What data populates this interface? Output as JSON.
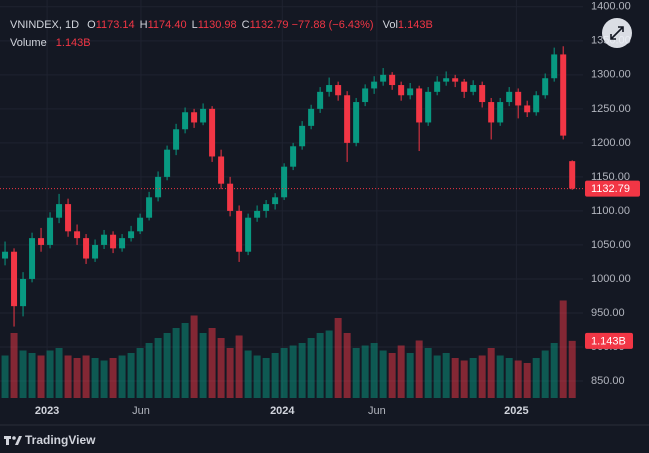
{
  "chart_data": {
    "type": "candlestick",
    "legend": {
      "symbol": "VNINDEX, 1D",
      "fields": [
        {
          "label": "O",
          "value": "1173.14"
        },
        {
          "label": "H",
          "value": "1174.40"
        },
        {
          "label": "L",
          "value": "1130.98"
        },
        {
          "label": "C",
          "value": "1132.79"
        }
      ],
      "change": "−77.88 (−6.43%)",
      "vol_label": "Vol",
      "vol_value": "1.143B",
      "volume_label": "Volume",
      "volume_value": "1.143B"
    },
    "ohlc": [
      [
        1030,
        1055,
        1020,
        1040
      ],
      [
        1040,
        1045,
        930,
        960
      ],
      [
        960,
        1010,
        945,
        1000
      ],
      [
        1000,
        1068,
        995,
        1060
      ],
      [
        1060,
        1075,
        1040,
        1050
      ],
      [
        1050,
        1098,
        1045,
        1090
      ],
      [
        1090,
        1125,
        1082,
        1110
      ],
      [
        1110,
        1118,
        1062,
        1070
      ],
      [
        1070,
        1080,
        1050,
        1060
      ],
      [
        1060,
        1066,
        1022,
        1030
      ],
      [
        1030,
        1058,
        1025,
        1050
      ],
      [
        1050,
        1072,
        1044,
        1065
      ],
      [
        1065,
        1070,
        1038,
        1045
      ],
      [
        1045,
        1066,
        1040,
        1060
      ],
      [
        1060,
        1078,
        1055,
        1070
      ],
      [
        1070,
        1096,
        1066,
        1090
      ],
      [
        1090,
        1128,
        1086,
        1120
      ],
      [
        1120,
        1158,
        1114,
        1150
      ],
      [
        1150,
        1196,
        1145,
        1190
      ],
      [
        1190,
        1228,
        1182,
        1220
      ],
      [
        1220,
        1252,
        1214,
        1245
      ],
      [
        1245,
        1250,
        1222,
        1230
      ],
      [
        1230,
        1258,
        1226,
        1250
      ],
      [
        1250,
        1254,
        1172,
        1180
      ],
      [
        1180,
        1190,
        1132,
        1140
      ],
      [
        1140,
        1150,
        1092,
        1100
      ],
      [
        1100,
        1108,
        1025,
        1040
      ],
      [
        1040,
        1096,
        1035,
        1090
      ],
      [
        1090,
        1108,
        1084,
        1100
      ],
      [
        1100,
        1116,
        1090,
        1110
      ],
      [
        1110,
        1126,
        1102,
        1120
      ],
      [
        1120,
        1170,
        1116,
        1165
      ],
      [
        1165,
        1200,
        1160,
        1195
      ],
      [
        1195,
        1232,
        1190,
        1225
      ],
      [
        1225,
        1256,
        1220,
        1250
      ],
      [
        1250,
        1282,
        1244,
        1275
      ],
      [
        1275,
        1296,
        1268,
        1285
      ],
      [
        1285,
        1290,
        1262,
        1270
      ],
      [
        1270,
        1276,
        1172,
        1200
      ],
      [
        1200,
        1266,
        1195,
        1260
      ],
      [
        1260,
        1286,
        1254,
        1280
      ],
      [
        1280,
        1298,
        1272,
        1290
      ],
      [
        1290,
        1310,
        1284,
        1300
      ],
      [
        1300,
        1304,
        1278,
        1285
      ],
      [
        1285,
        1290,
        1262,
        1270
      ],
      [
        1270,
        1288,
        1264,
        1280
      ],
      [
        1280,
        1284,
        1188,
        1230
      ],
      [
        1230,
        1282,
        1225,
        1275
      ],
      [
        1275,
        1298,
        1270,
        1290
      ],
      [
        1290,
        1305,
        1284,
        1295
      ],
      [
        1295,
        1300,
        1282,
        1290
      ],
      [
        1290,
        1294,
        1266,
        1275
      ],
      [
        1275,
        1292,
        1270,
        1285
      ],
      [
        1285,
        1290,
        1252,
        1260
      ],
      [
        1260,
        1266,
        1205,
        1230
      ],
      [
        1230,
        1266,
        1225,
        1260
      ],
      [
        1260,
        1282,
        1254,
        1275
      ],
      [
        1275,
        1280,
        1236,
        1255
      ],
      [
        1255,
        1262,
        1238,
        1245
      ],
      [
        1245,
        1276,
        1240,
        1270
      ],
      [
        1270,
        1302,
        1265,
        1295
      ],
      [
        1295,
        1340,
        1290,
        1330
      ],
      [
        1330,
        1342,
        1205,
        1210.67
      ],
      [
        1173.14,
        1174.4,
        1130.98,
        1132.79
      ]
    ],
    "volume": [
      0.85,
      1.3,
      0.95,
      0.9,
      0.85,
      0.95,
      1.0,
      0.85,
      0.8,
      0.85,
      0.8,
      0.75,
      0.8,
      0.85,
      0.9,
      1.0,
      1.1,
      1.2,
      1.3,
      1.4,
      1.5,
      1.65,
      1.3,
      1.4,
      1.2,
      1.0,
      1.25,
      0.95,
      0.85,
      0.8,
      0.9,
      1.0,
      1.05,
      1.1,
      1.2,
      1.3,
      1.35,
      1.6,
      1.3,
      1.0,
      1.05,
      1.1,
      0.95,
      0.9,
      1.05,
      0.9,
      1.15,
      1.0,
      0.85,
      0.9,
      0.8,
      0.75,
      0.8,
      0.85,
      1.0,
      0.85,
      0.8,
      0.75,
      0.7,
      0.8,
      0.95,
      1.1,
      1.95,
      1.143
    ],
    "volume_last_label": "1.143B",
    "vlim": [
      0,
      2.4
    ],
    "last_price": 1132.79,
    "up_color": "#089981",
    "down_color": "#f23645",
    "xlim": [
      -0.56,
      64.2
    ],
    "xticks": [
      {
        "value": 4.67,
        "label": "2023"
      },
      {
        "value": 15.1,
        "label": "Jun"
      },
      {
        "value": 30.8,
        "label": "2024"
      },
      {
        "value": 41.3,
        "label": "Jun"
      },
      {
        "value": 56.8,
        "label": "2025"
      }
    ],
    "ylim": [
      825,
      1410
    ],
    "yticks": [
      {
        "value": 850,
        "label": "850.00"
      },
      {
        "value": 900,
        "label": "900.00"
      },
      {
        "value": 950,
        "label": "950.00"
      },
      {
        "value": 1000,
        "label": "1000.00"
      },
      {
        "value": 1050,
        "label": "1050.00"
      },
      {
        "value": 1100,
        "label": "1100.00"
      },
      {
        "value": 1150,
        "label": "1150.00"
      },
      {
        "value": 1200,
        "label": "1200.00"
      },
      {
        "value": 1250,
        "label": "1250.00"
      },
      {
        "value": 1300,
        "label": "1300.00"
      },
      {
        "value": 1350,
        "label": "1350.00"
      },
      {
        "value": 1400,
        "label": "1400.00"
      }
    ],
    "grid": true,
    "brand": "TradingView"
  }
}
